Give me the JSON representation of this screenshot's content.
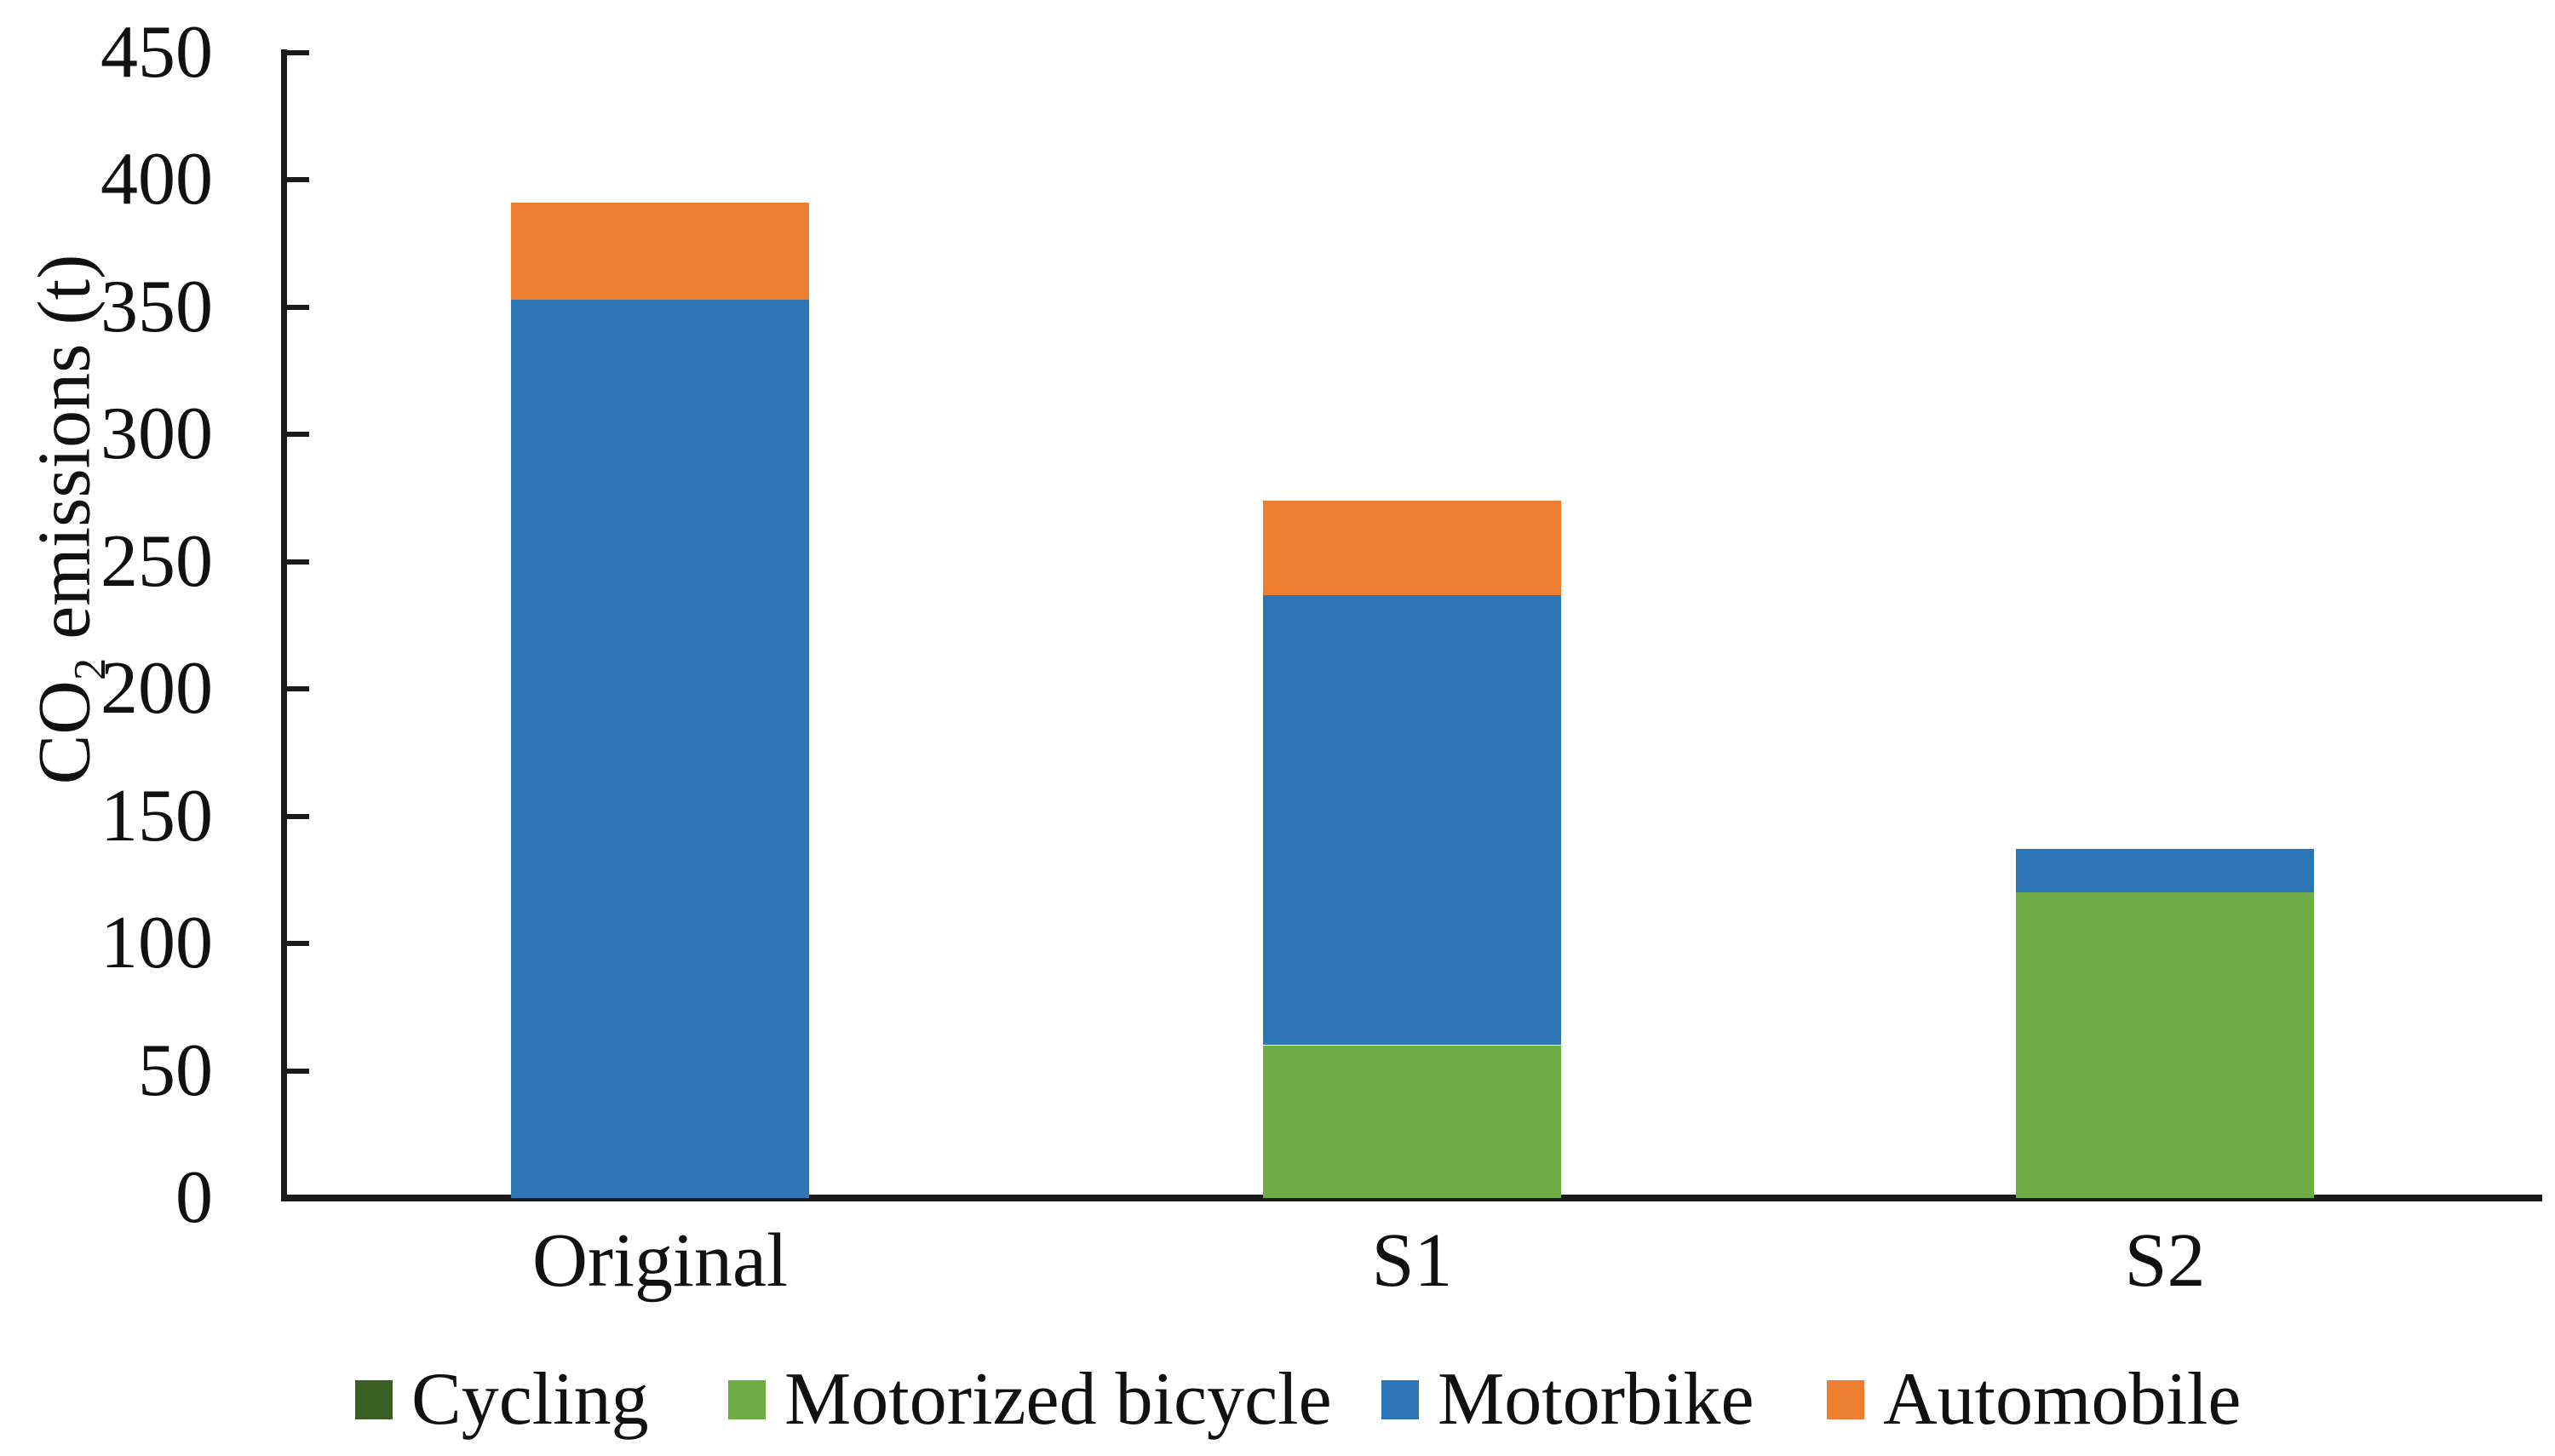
{
  "chart_data": {
    "type": "bar",
    "stacked": true,
    "title": "",
    "xlabel": "",
    "ylabel": "CO2 emissions (t)",
    "ylabel_parts": {
      "pre": "CO",
      "sub": "2",
      "post": " emissions (t)"
    },
    "categories": [
      "Original",
      "S1",
      "S2"
    ],
    "series": [
      {
        "name": "Cycling",
        "color": "#3A5F23",
        "values": [
          0,
          0,
          0
        ]
      },
      {
        "name": "Motorized bicycle",
        "color": "#70AD47",
        "values": [
          0,
          60,
          120
        ]
      },
      {
        "name": "Motorbike",
        "color": "#2E75B6",
        "values": [
          353,
          177,
          17
        ]
      },
      {
        "name": "Automobile",
        "color": "#ED7D31",
        "values": [
          38,
          37,
          0
        ]
      }
    ],
    "totals": [
      391,
      274,
      137
    ],
    "ylim": [
      0,
      450
    ],
    "yticks": [
      0,
      50,
      100,
      150,
      200,
      250,
      300,
      350,
      400,
      450
    ],
    "grid": false,
    "legend_position": "bottom"
  },
  "colors": {
    "axis": "#1A1A1A",
    "text": "#111111",
    "background": "#FFFFFF"
  }
}
